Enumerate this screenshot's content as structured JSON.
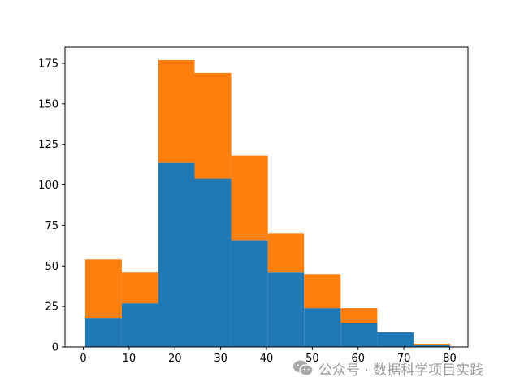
{
  "chart_data": {
    "type": "bar",
    "stacked": true,
    "title": "",
    "xlabel": "",
    "ylabel": "",
    "xlim": [
      -4,
      84
    ],
    "ylim": [
      0,
      185
    ],
    "bin_edges": [
      0.42,
      8.4,
      16.4,
      24.3,
      32.3,
      40.3,
      48.2,
      56.2,
      64.2,
      72.1,
      80.1
    ],
    "series": [
      {
        "values": [
          18,
          27,
          114,
          104,
          66,
          46,
          24,
          15,
          9,
          1
        ],
        "color": "#1f77b4"
      },
      {
        "values": [
          36,
          19,
          63,
          65,
          52,
          24,
          21,
          9,
          0,
          1
        ],
        "color": "#ff7f0e"
      }
    ],
    "x_ticks": [
      0,
      10,
      20,
      30,
      40,
      50,
      60,
      70,
      80
    ],
    "y_ticks": [
      0,
      25,
      50,
      75,
      100,
      125,
      150,
      175
    ],
    "grid": false,
    "legend": "none"
  },
  "watermark": {
    "icon": "wechat-icon",
    "text": "公众号 · 数据科学项目实践"
  }
}
